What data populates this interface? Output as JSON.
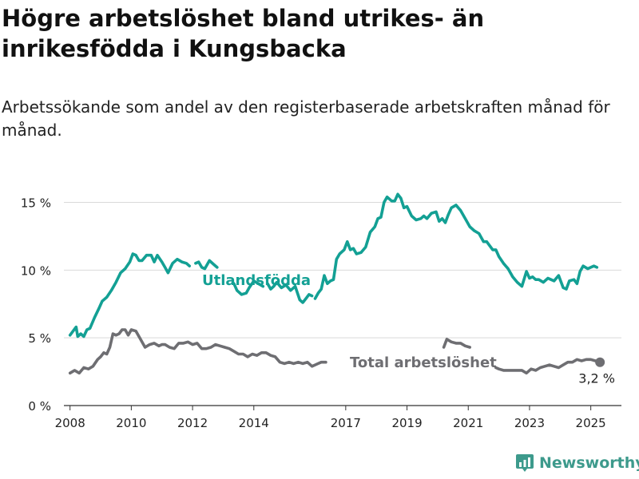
{
  "header": {
    "title": "Högre arbetslöshet bland utrikes- än inrikesfödda i Kungsbacka",
    "subtitle": "Arbetssökande som andel av den registerbaserade arbetskraften månad för månad."
  },
  "brand": {
    "name": "Newsworthy",
    "color": "#3d9a8c"
  },
  "chart_data": {
    "type": "line",
    "x_unit": "year",
    "y_unit": "%",
    "xlim": [
      2007.8,
      2026.0
    ],
    "ylim": [
      0,
      15.5
    ],
    "y_ticks": [
      0,
      5,
      10,
      15
    ],
    "y_tick_labels": [
      "0 %",
      "5 %",
      "10 %",
      "15 %"
    ],
    "x_ticks": [
      2008,
      2010,
      2012,
      2014,
      2017,
      2019,
      2021,
      2023,
      2025
    ],
    "x_tick_labels": [
      "2008",
      "2010",
      "2012",
      "2014",
      "2017",
      "2019",
      "2021",
      "2023",
      "2025"
    ],
    "grid": "horizontal",
    "series": [
      {
        "name": "Utlandsfödda",
        "color": "#13a094",
        "segments": [
          {
            "x": [
              2008.0,
              2008.1,
              2008.2,
              2008.25,
              2008.35,
              2008.45,
              2008.55,
              2008.65,
              2008.8,
              2008.95,
              2009.05,
              2009.2,
              2009.35,
              2009.5,
              2009.65,
              2009.8,
              2009.95,
              2010.05,
              2010.15,
              2010.25,
              2010.35,
              2010.5,
              2010.65,
              2010.75,
              2010.85,
              2011.0,
              2011.1,
              2011.2,
              2011.35,
              2011.5,
              2011.65,
              2011.8,
              2011.9
            ],
            "y": [
              5.2,
              5.5,
              5.8,
              5.1,
              5.3,
              5.1,
              5.6,
              5.7,
              6.5,
              7.2,
              7.7,
              8.0,
              8.5,
              9.1,
              9.8,
              10.1,
              10.6,
              11.2,
              11.1,
              10.7,
              10.7,
              11.1,
              11.1,
              10.6,
              11.1,
              10.6,
              10.2,
              9.8,
              10.5,
              10.8,
              10.6,
              10.5,
              10.3
            ]
          },
          {
            "x": [
              2012.1,
              2012.2,
              2012.3,
              2012.4,
              2012.55,
              2012.7,
              2012.8
            ],
            "y": [
              10.5,
              10.6,
              10.2,
              10.1,
              10.7,
              10.4,
              10.2
            ]
          },
          {
            "x": [
              2013.35,
              2013.45,
              2013.6,
              2013.75,
              2013.85,
              2014.0,
              2014.15,
              2014.3
            ],
            "y": [
              9.0,
              8.5,
              8.2,
              8.3,
              8.7,
              9.2,
              9.0,
              8.8
            ]
          },
          {
            "x": [
              2014.45,
              2014.55,
              2014.65,
              2014.75,
              2014.9,
              2015.05,
              2015.2,
              2015.35,
              2015.5,
              2015.6,
              2015.7,
              2015.8,
              2015.9
            ],
            "y": [
              9.0,
              8.6,
              8.8,
              9.1,
              8.7,
              8.9,
              8.5,
              8.8,
              7.8,
              7.6,
              7.9,
              8.2,
              8.1
            ]
          },
          {
            "x": [
              2016.0,
              2016.1,
              2016.2,
              2016.3,
              2016.4,
              2016.5,
              2016.6,
              2016.7,
              2016.8,
              2016.95,
              2017.05,
              2017.15,
              2017.25,
              2017.35,
              2017.5,
              2017.65,
              2017.8,
              2017.95,
              2018.05,
              2018.15,
              2018.25,
              2018.35,
              2018.5,
              2018.6,
              2018.7,
              2018.8,
              2018.9,
              2019.0,
              2019.15,
              2019.3,
              2019.45,
              2019.55,
              2019.65,
              2019.8,
              2019.95,
              2020.05,
              2020.15,
              2020.25,
              2020.35,
              2020.45,
              2020.6,
              2020.75,
              2020.9,
              2021.05,
              2021.2,
              2021.35,
              2021.5,
              2021.6,
              2021.7,
              2021.8,
              2021.9,
              2022.0,
              2022.15,
              2022.3,
              2022.45,
              2022.6,
              2022.75,
              2022.9,
              2023.0,
              2023.1,
              2023.2,
              2023.3,
              2023.45,
              2023.6,
              2023.7,
              2023.8,
              2023.95,
              2024.1,
              2024.2,
              2024.3,
              2024.45,
              2024.55,
              2024.65,
              2024.75,
              2024.9,
              2025.0,
              2025.1,
              2025.2
            ],
            "y": [
              7.9,
              8.3,
              8.6,
              9.6,
              9.0,
              9.2,
              9.3,
              10.8,
              11.2,
              11.5,
              12.1,
              11.5,
              11.6,
              11.2,
              11.3,
              11.7,
              12.8,
              13.2,
              13.8,
              13.9,
              15.0,
              15.4,
              15.1,
              15.1,
              15.6,
              15.3,
              14.6,
              14.7,
              14.0,
              13.7,
              13.8,
              14.0,
              13.8,
              14.2,
              14.3,
              13.6,
              13.8,
              13.5,
              14.1,
              14.6,
              14.8,
              14.4,
              13.8,
              13.2,
              12.9,
              12.7,
              12.1,
              12.1,
              11.8,
              11.5,
              11.5,
              11.0,
              10.5,
              10.1,
              9.5,
              9.1,
              8.8,
              9.9,
              9.4,
              9.5,
              9.3,
              9.3,
              9.1,
              9.4,
              9.3,
              9.2,
              9.6,
              8.7,
              8.6,
              9.2,
              9.3,
              9.0,
              9.9,
              10.3,
              10.1,
              10.2,
              10.3,
              10.2
            ]
          }
        ]
      },
      {
        "name": "Total arbetslöshet",
        "color": "#6e6e72",
        "end_label": "3,2 %",
        "segments": [
          {
            "x": [
              2008.0,
              2008.15,
              2008.3,
              2008.45,
              2008.6,
              2008.75,
              2008.9,
              2009.0,
              2009.1,
              2009.2,
              2009.3,
              2009.4,
              2009.5,
              2009.6,
              2009.7,
              2009.8,
              2009.9,
              2010.0,
              2010.15,
              2010.3,
              2010.45,
              2010.6,
              2010.75,
              2010.9,
              2011.0,
              2011.1,
              2011.25,
              2011.4,
              2011.55,
              2011.7,
              2011.85,
              2012.0,
              2012.15,
              2012.3,
              2012.45,
              2012.6,
              2012.75,
              2012.9,
              2013.05,
              2013.2,
              2013.35,
              2013.5,
              2013.65,
              2013.8,
              2013.95,
              2014.1,
              2014.25,
              2014.4,
              2014.55,
              2014.7,
              2014.85,
              2015.0,
              2015.15,
              2015.3,
              2015.45,
              2015.6,
              2015.75,
              2015.9,
              2016.0,
              2016.1,
              2016.2,
              2016.35
            ],
            "y": [
              2.4,
              2.6,
              2.4,
              2.8,
              2.7,
              2.9,
              3.4,
              3.6,
              3.9,
              3.8,
              4.3,
              5.3,
              5.2,
              5.3,
              5.6,
              5.6,
              5.2,
              5.6,
              5.5,
              4.9,
              4.3,
              4.5,
              4.6,
              4.4,
              4.5,
              4.5,
              4.3,
              4.2,
              4.6,
              4.6,
              4.7,
              4.5,
              4.6,
              4.2,
              4.2,
              4.3,
              4.5,
              4.4,
              4.3,
              4.2,
              4.0,
              3.8,
              3.8,
              3.6,
              3.8,
              3.7,
              3.9,
              3.9,
              3.7,
              3.6,
              3.2,
              3.1,
              3.2,
              3.1,
              3.2,
              3.1,
              3.2,
              2.9,
              3.0,
              3.1,
              3.2,
              3.2
            ]
          },
          {
            "x": [
              2020.2,
              2020.3,
              2020.45,
              2020.6,
              2020.75,
              2020.9,
              2021.05
            ],
            "y": [
              4.3,
              4.9,
              4.7,
              4.6,
              4.6,
              4.4,
              4.3
            ]
          },
          {
            "x": [
              2021.9,
              2022.0,
              2022.15,
              2022.3,
              2022.45,
              2022.6,
              2022.75,
              2022.9,
              2023.05,
              2023.2,
              2023.35,
              2023.5,
              2023.65,
              2023.8,
              2023.95,
              2024.1,
              2024.25,
              2024.4,
              2024.55,
              2024.7,
              2024.85,
              2025.0,
              2025.15,
              2025.3
            ],
            "y": [
              2.8,
              2.7,
              2.6,
              2.6,
              2.6,
              2.6,
              2.6,
              2.4,
              2.7,
              2.6,
              2.8,
              2.9,
              3.0,
              2.9,
              2.8,
              3.0,
              3.2,
              3.2,
              3.4,
              3.3,
              3.4,
              3.4,
              3.3,
              3.2
            ]
          }
        ]
      }
    ]
  }
}
